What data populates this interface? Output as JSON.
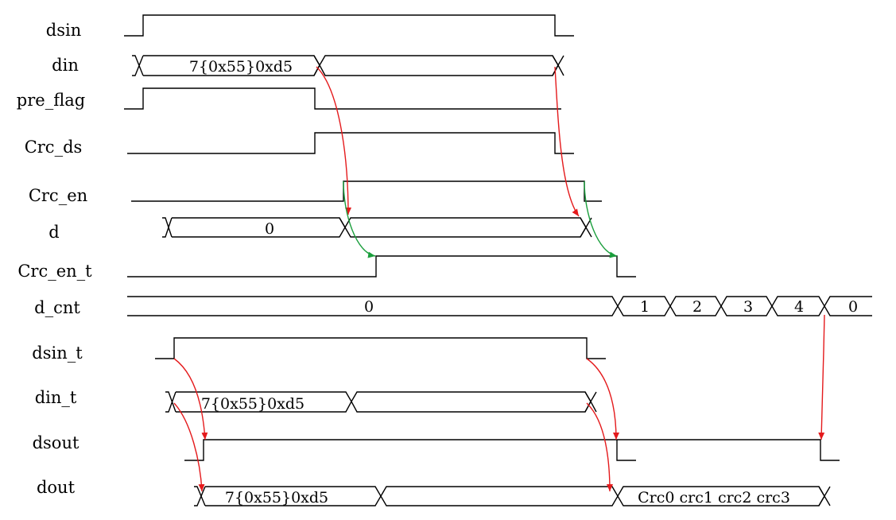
{
  "signals": [
    {
      "id": "dsin",
      "label": "dsin"
    },
    {
      "id": "din",
      "label": "din"
    },
    {
      "id": "pre_flag",
      "label": "pre_flag"
    },
    {
      "id": "crc_ds",
      "label": "Crc_ds"
    },
    {
      "id": "crc_en",
      "label": "Crc_en"
    },
    {
      "id": "d",
      "label": "d"
    },
    {
      "id": "crc_en_t",
      "label": "Crc_en_t"
    },
    {
      "id": "d_cnt",
      "label": "d_cnt"
    },
    {
      "id": "dsin_t",
      "label": "dsin_t"
    },
    {
      "id": "din_t",
      "label": "din_t"
    },
    {
      "id": "dsout",
      "label": "dsout"
    },
    {
      "id": "dout",
      "label": "dout"
    }
  ],
  "bus_values": {
    "din_seg1": "7{0x55}0xd5",
    "d_seg1": "0",
    "d_cnt": [
      "0",
      "1",
      "2",
      "3",
      "4",
      "0"
    ],
    "din_t_seg1": "7{0x55}0xd5",
    "dout_seg1": "7{0x55}0xd5",
    "dout_crc": "Crc0 crc1 crc2 crc3"
  },
  "colors": {
    "waveform": "#000000",
    "causal_arrow_red": "#e41a1c",
    "causal_arrow_green": "#1a9e3c"
  }
}
